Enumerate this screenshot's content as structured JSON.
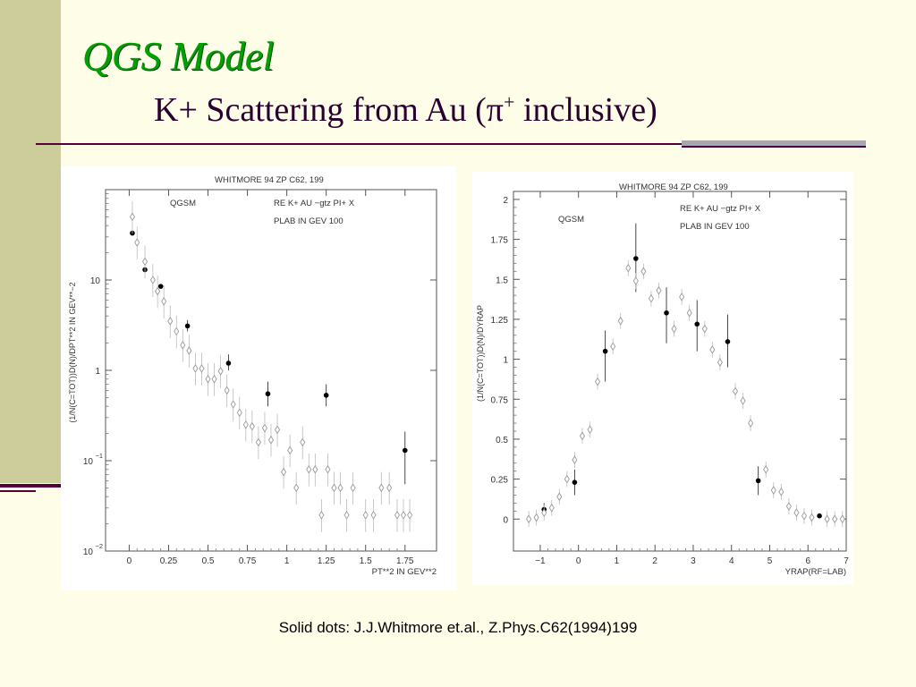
{
  "slide": {
    "title": "QGS Model",
    "subtitle_main": "K+ Scattering from Au (π",
    "subtitle_sup": "+",
    "subtitle_end": " inclusive)",
    "caption": "Solid dots: J.J.Whitmore et.al., Z.Phys.C62(1994)199"
  },
  "colors": {
    "title": "#00a000",
    "subtitle": "#2a0030",
    "accent_rule": "#55003b",
    "sidebar": "#cdcd9b"
  },
  "chart_data": [
    {
      "type": "scatter",
      "header": "WHITMORE 94   ZP C62, 199",
      "model_label": "QGSM",
      "reaction_label": "RE   K+ AU  −gtz PI+ X",
      "plab_label": "PLAB IN GEV   100",
      "xlabel": "PT**2 IN GEV**2",
      "ylabel": "(1/N(C=TOT))D(N)/DPT**2 IN GEV**−2",
      "yscale": "log",
      "xlim": [
        -0.15,
        1.95
      ],
      "ylim": [
        0.01,
        100
      ],
      "xticks": [
        0,
        0.25,
        0.5,
        0.75,
        1,
        1.25,
        1.5,
        1.75
      ],
      "xtick_labels": [
        "0",
        "0.25",
        "0.5",
        "0.75",
        "1",
        "1.25",
        "1.5",
        "1.75"
      ],
      "yticks": [
        0.01,
        0.1,
        1,
        10
      ],
      "ytick_labels": [
        {
          "base": "10",
          "exp": "−2"
        },
        {
          "base": "10",
          "exp": "−1"
        },
        {
          "base": "1",
          "exp": ""
        },
        {
          "base": "10",
          "exp": ""
        }
      ],
      "series": [
        {
          "name": "Solid dots: J.J.Whitmore et.al., Z.Phys.C62(1994)199",
          "marker": "dot",
          "points": [
            {
              "x": 0.02,
              "y": 33
            },
            {
              "x": 0.1,
              "y": 13
            },
            {
              "x": 0.2,
              "y": 8.5
            },
            {
              "x": 0.37,
              "y": 3.1,
              "err": [
                2.7,
                3.6
              ]
            },
            {
              "x": 0.63,
              "y": 1.2,
              "err": [
                1.0,
                1.5
              ]
            },
            {
              "x": 0.88,
              "y": 0.55,
              "err": [
                0.4,
                0.75
              ]
            },
            {
              "x": 1.25,
              "y": 0.53,
              "err": [
                0.4,
                0.7
              ]
            },
            {
              "x": 1.75,
              "y": 0.13,
              "err": [
                0.055,
                0.21
              ]
            }
          ]
        },
        {
          "marker": "diamond",
          "points": [
            {
              "x": 0.02,
              "y": 50
            },
            {
              "x": 0.05,
              "y": 26
            },
            {
              "x": 0.1,
              "y": 16
            },
            {
              "x": 0.15,
              "y": 10
            },
            {
              "x": 0.18,
              "y": 7.5
            },
            {
              "x": 0.22,
              "y": 5.8
            },
            {
              "x": 0.26,
              "y": 3.5
            },
            {
              "x": 0.3,
              "y": 2.7
            },
            {
              "x": 0.34,
              "y": 1.9
            },
            {
              "x": 0.38,
              "y": 1.65
            },
            {
              "x": 0.42,
              "y": 1.05
            },
            {
              "x": 0.46,
              "y": 1.05
            },
            {
              "x": 0.5,
              "y": 0.8
            },
            {
              "x": 0.54,
              "y": 0.8
            },
            {
              "x": 0.58,
              "y": 0.98
            },
            {
              "x": 0.62,
              "y": 0.6
            },
            {
              "x": 0.66,
              "y": 0.42
            },
            {
              "x": 0.7,
              "y": 0.34
            },
            {
              "x": 0.74,
              "y": 0.25
            },
            {
              "x": 0.78,
              "y": 0.24
            },
            {
              "x": 0.82,
              "y": 0.16
            },
            {
              "x": 0.86,
              "y": 0.23
            },
            {
              "x": 0.9,
              "y": 0.17
            },
            {
              "x": 0.94,
              "y": 0.22
            },
            {
              "x": 0.98,
              "y": 0.075
            },
            {
              "x": 1.02,
              "y": 0.13
            },
            {
              "x": 1.06,
              "y": 0.05
            },
            {
              "x": 1.1,
              "y": 0.16
            },
            {
              "x": 1.14,
              "y": 0.08
            },
            {
              "x": 1.18,
              "y": 0.08
            },
            {
              "x": 1.22,
              "y": 0.025
            },
            {
              "x": 1.26,
              "y": 0.08
            },
            {
              "x": 1.3,
              "y": 0.05
            },
            {
              "x": 1.34,
              "y": 0.05
            },
            {
              "x": 1.38,
              "y": 0.025
            },
            {
              "x": 1.42,
              "y": 0.05
            },
            {
              "x": 1.5,
              "y": 0.025
            },
            {
              "x": 1.55,
              "y": 0.025
            },
            {
              "x": 1.6,
              "y": 0.05
            },
            {
              "x": 1.65,
              "y": 0.05
            },
            {
              "x": 1.7,
              "y": 0.025
            },
            {
              "x": 1.74,
              "y": 0.025
            },
            {
              "x": 1.78,
              "y": 0.025
            }
          ]
        }
      ]
    },
    {
      "type": "scatter",
      "header": "WHITMORE 94   ZP C62, 199",
      "model_label": "QGSM",
      "reaction_label": "RE   K+ AU  −gtz PI+ X",
      "plab_label": "PLAB IN GEV   100",
      "xlabel": "YRAP(RF=LAB)",
      "ylabel": "(1/N(C=TOT))D(N)/DYRAP",
      "yscale": "linear",
      "xlim": [
        -1.7,
        7
      ],
      "ylim": [
        -0.2,
        2.05
      ],
      "xticks": [
        -1,
        0,
        1,
        2,
        3,
        4,
        5,
        6,
        7
      ],
      "xtick_labels": [
        "−1",
        "0",
        "1",
        "2",
        "3",
        "4",
        "5",
        "6",
        "7"
      ],
      "yticks": [
        0,
        0.25,
        0.5,
        0.75,
        1,
        1.25,
        1.5,
        1.75,
        2
      ],
      "ytick_labels": [
        "0",
        "0.25",
        "0.5",
        "0.75",
        "1",
        "1.25",
        "1.5",
        "1.75",
        "2"
      ],
      "series": [
        {
          "name": "Solid dots: J.J.Whitmore et.al., Z.Phys.C62(1994)199",
          "marker": "dot",
          "points": [
            {
              "x": -0.9,
              "y": 0.06,
              "err": [
                0.02,
                0.1
              ]
            },
            {
              "x": -0.1,
              "y": 0.23,
              "err": [
                0.15,
                0.31
              ]
            },
            {
              "x": 0.7,
              "y": 1.05,
              "err": [
                0.86,
                1.18
              ]
            },
            {
              "x": 1.5,
              "y": 1.63,
              "err": [
                1.42,
                1.85
              ]
            },
            {
              "x": 2.3,
              "y": 1.29,
              "err": [
                1.1,
                1.45
              ]
            },
            {
              "x": 3.1,
              "y": 1.22,
              "err": [
                1.05,
                1.37
              ]
            },
            {
              "x": 3.9,
              "y": 1.11,
              "err": [
                0.95,
                1.28
              ]
            },
            {
              "x": 4.7,
              "y": 0.24,
              "err": [
                0.15,
                0.33
              ]
            },
            {
              "x": 6.3,
              "y": 0.02
            }
          ]
        },
        {
          "marker": "diamond",
          "points": [
            {
              "x": -1.3,
              "y": 0.0
            },
            {
              "x": -1.1,
              "y": 0.01
            },
            {
              "x": -0.9,
              "y": 0.04
            },
            {
              "x": -0.7,
              "y": 0.07
            },
            {
              "x": -0.5,
              "y": 0.14
            },
            {
              "x": -0.3,
              "y": 0.25
            },
            {
              "x": -0.1,
              "y": 0.37
            },
            {
              "x": 0.1,
              "y": 0.52
            },
            {
              "x": 0.3,
              "y": 0.56
            },
            {
              "x": 0.5,
              "y": 0.86
            },
            {
              "x": 0.9,
              "y": 1.08
            },
            {
              "x": 1.1,
              "y": 1.24
            },
            {
              "x": 1.3,
              "y": 1.57
            },
            {
              "x": 1.5,
              "y": 1.49
            },
            {
              "x": 1.7,
              "y": 1.55
            },
            {
              "x": 1.9,
              "y": 1.38
            },
            {
              "x": 2.1,
              "y": 1.43
            },
            {
              "x": 2.5,
              "y": 1.19
            },
            {
              "x": 2.7,
              "y": 1.39
            },
            {
              "x": 2.9,
              "y": 1.29
            },
            {
              "x": 3.3,
              "y": 1.19
            },
            {
              "x": 3.5,
              "y": 1.06
            },
            {
              "x": 3.7,
              "y": 0.98
            },
            {
              "x": 4.1,
              "y": 0.8
            },
            {
              "x": 4.3,
              "y": 0.74
            },
            {
              "x": 4.5,
              "y": 0.6
            },
            {
              "x": 4.9,
              "y": 0.31
            },
            {
              "x": 5.1,
              "y": 0.18
            },
            {
              "x": 5.3,
              "y": 0.17
            },
            {
              "x": 5.5,
              "y": 0.08
            },
            {
              "x": 5.7,
              "y": 0.04
            },
            {
              "x": 5.9,
              "y": 0.02
            },
            {
              "x": 6.1,
              "y": 0.01
            },
            {
              "x": 6.5,
              "y": 0.0
            },
            {
              "x": 6.7,
              "y": 0.0
            },
            {
              "x": 6.9,
              "y": 0.0
            }
          ]
        }
      ]
    }
  ]
}
